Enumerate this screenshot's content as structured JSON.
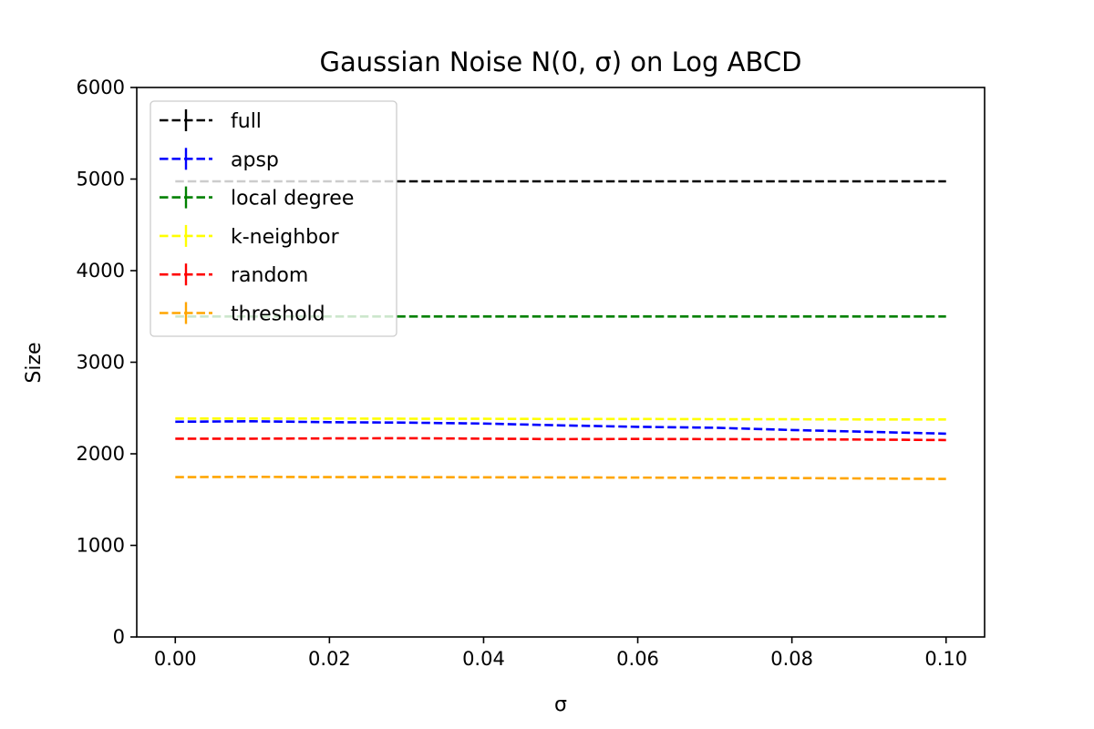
{
  "chart_data": {
    "type": "line",
    "title": "Gaussian Noise N(0, σ) on Log ABCD",
    "xlabel": "σ",
    "ylabel": "Size",
    "xlim": [
      -0.005,
      0.105
    ],
    "ylim": [
      0,
      6000
    ],
    "x_ticks": [
      0.0,
      0.02,
      0.04,
      0.06,
      0.08,
      0.1
    ],
    "x_tick_labels": [
      "0.00",
      "0.02",
      "0.04",
      "0.06",
      "0.08",
      "0.10"
    ],
    "y_ticks": [
      0,
      1000,
      2000,
      3000,
      4000,
      5000,
      6000
    ],
    "y_tick_labels": [
      "0",
      "1000",
      "2000",
      "3000",
      "4000",
      "5000",
      "6000"
    ],
    "grid": false,
    "legend_position": "top-left",
    "line_style": "dashed",
    "x": [
      0.0,
      0.01,
      0.02,
      0.03,
      0.04,
      0.05,
      0.06,
      0.07,
      0.08,
      0.09,
      0.1
    ],
    "series": [
      {
        "name": "full",
        "color": "#000000",
        "values": [
          4975,
          4975,
          4975,
          4975,
          4975,
          4975,
          4975,
          4975,
          4975,
          4975,
          4975
        ]
      },
      {
        "name": "apsp",
        "color": "#0000ff",
        "values": [
          2350,
          2355,
          2345,
          2340,
          2330,
          2310,
          2295,
          2285,
          2260,
          2240,
          2220
        ]
      },
      {
        "name": "local degree",
        "color": "#008000",
        "values": [
          3500,
          3500,
          3500,
          3500,
          3500,
          3500,
          3500,
          3500,
          3500,
          3500,
          3500
        ]
      },
      {
        "name": "k-neighbor",
        "color": "#ffff00",
        "values": [
          2385,
          2385,
          2385,
          2383,
          2382,
          2380,
          2380,
          2378,
          2377,
          2375,
          2375
        ]
      },
      {
        "name": "random",
        "color": "#ff0000",
        "values": [
          2165,
          2165,
          2168,
          2170,
          2165,
          2160,
          2162,
          2160,
          2158,
          2155,
          2150
        ]
      },
      {
        "name": "threshold",
        "color": "#ffa500",
        "values": [
          1745,
          1748,
          1745,
          1745,
          1743,
          1742,
          1740,
          1738,
          1735,
          1730,
          1725
        ]
      }
    ]
  }
}
